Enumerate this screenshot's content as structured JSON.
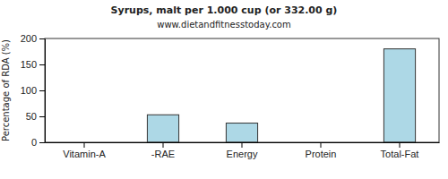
{
  "chart_data": {
    "type": "bar",
    "title": "Syrups, malt per 1.000 cup (or 332.00 g)",
    "subtitle": "www.dietandfitnesstoday.com",
    "y_label": "Percentage of RDA (%)",
    "categories": [
      "Vitamin-A",
      "-RAE",
      "Energy",
      "Protein",
      "Total-Fat"
    ],
    "values": [
      0,
      53,
      37,
      0,
      180
    ],
    "color": "#add8e6",
    "ylim": [
      0,
      200
    ],
    "yticks": [
      0,
      50,
      100,
      150,
      200
    ],
    "grid": false
  }
}
